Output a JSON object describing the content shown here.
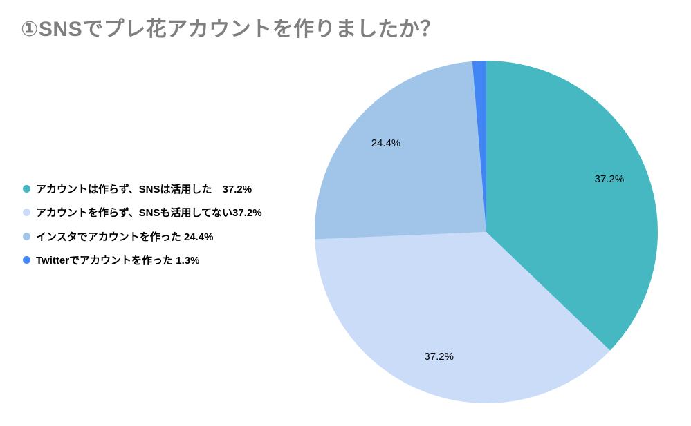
{
  "page": {
    "background_color": "#ffffff"
  },
  "chart_data": {
    "type": "pie",
    "title": "①SNSでプレ花アカウントを作りましたか？",
    "title_color": "#7f7f7f",
    "start_angle_deg": 0,
    "direction": "clockwise",
    "legend_position": "middle-left",
    "slice_label_color": "#000000",
    "slice_label_radius_fraction": 0.78,
    "min_value_pct_for_slice_label": 2,
    "geometry": {
      "cx": 703,
      "cy": 336,
      "r": 248
    },
    "series": [
      {
        "label": "アカウントは作らず、SNSは活用した",
        "legend_spacer": "　",
        "pct_label": "37.2%",
        "value": 37.2,
        "color": "#45b8c1"
      },
      {
        "label": "アカウントを作らず、SNSも活用してない",
        "legend_spacer": "",
        "pct_label": "37.2%",
        "value": 37.2,
        "color": "#cbdcf8"
      },
      {
        "label": "インスタでアカウントを作った",
        "legend_spacer": " ",
        "pct_label": "24.4%",
        "value": 24.4,
        "color": "#a0c5e8"
      },
      {
        "label": "Twitterでアカウントを作った",
        "legend_spacer": " ",
        "pct_label": "1.3%",
        "value": 1.3,
        "color": "#4285f4"
      }
    ]
  }
}
